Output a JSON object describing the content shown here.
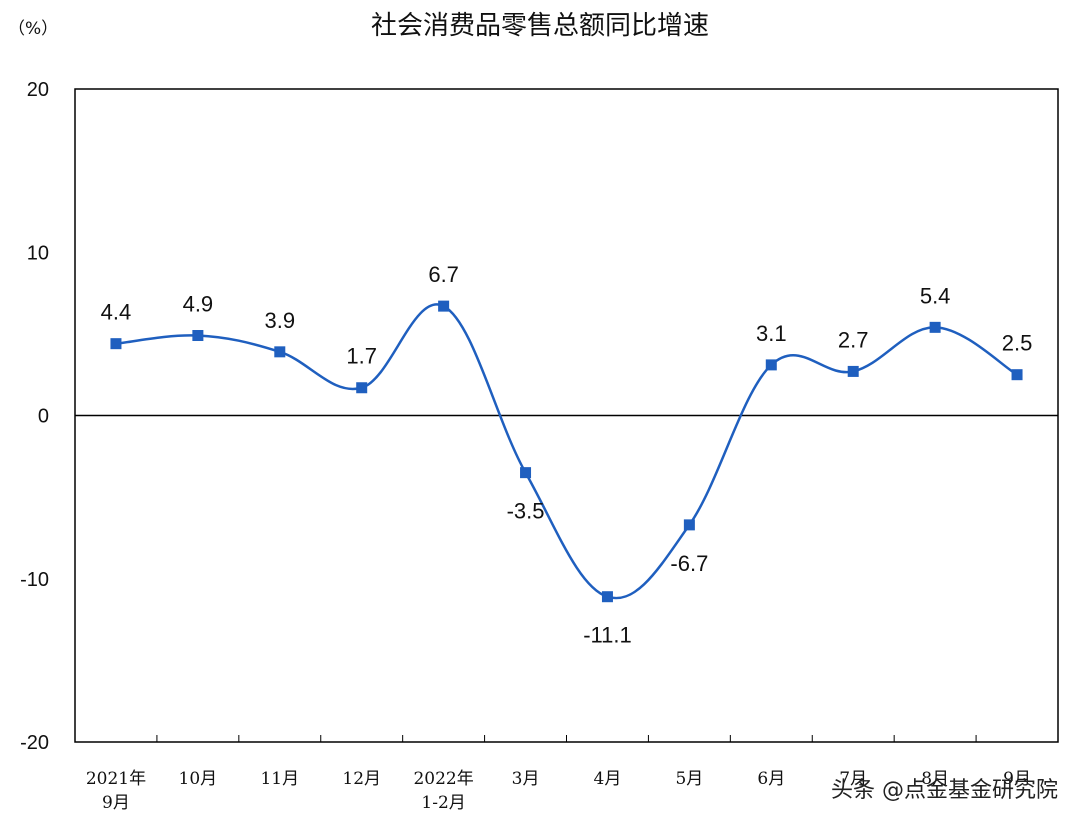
{
  "chart_data": {
    "type": "line",
    "title": "社会消费品零售总额同比增速",
    "unit_label": "（%）",
    "categories": [
      [
        "2021年",
        "9月"
      ],
      [
        "10月"
      ],
      [
        "11月"
      ],
      [
        "12月"
      ],
      [
        "2022年",
        "1-2月"
      ],
      [
        "3月"
      ],
      [
        "4月"
      ],
      [
        "5月"
      ],
      [
        "6月"
      ],
      [
        "7月"
      ],
      [
        "8月"
      ],
      [
        "9月"
      ]
    ],
    "series": [
      {
        "values": [
          4.4,
          4.9,
          3.9,
          1.7,
          6.7,
          -3.5,
          -11.1,
          -6.7,
          3.1,
          2.7,
          5.4,
          2.5
        ]
      }
    ],
    "data_labels": [
      "4.4",
      "4.9",
      "3.9",
      "1.7",
      "6.7",
      "-3.5",
      "-11.1",
      "-6.7",
      "3.1",
      "2.7",
      "5.4",
      "2.5"
    ],
    "ylim": [
      -20,
      20
    ],
    "yticks": [
      20,
      10,
      0,
      -10,
      -20
    ],
    "ytick_labels": [
      "20",
      "10",
      "0",
      "-10",
      "-20"
    ],
    "grid": false,
    "legend": "none",
    "colors": {
      "line": "#1f5fbf",
      "marker": "#1f5fbf",
      "axis": "#000000"
    }
  },
  "watermark": "头条 @点金基金研究院"
}
